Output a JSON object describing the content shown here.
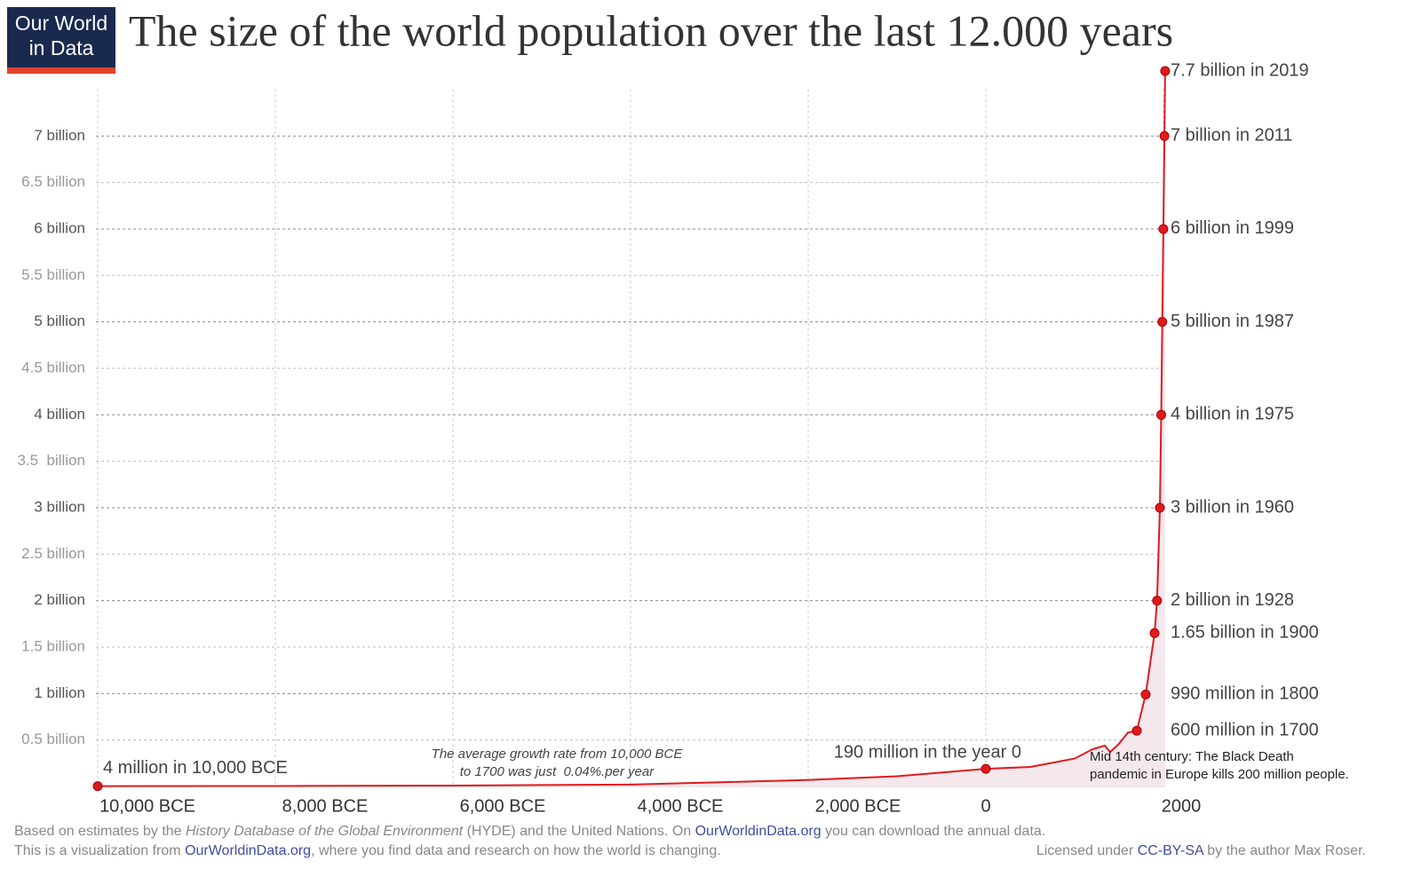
{
  "logo": {
    "line1": "Our World",
    "line2": "in Data"
  },
  "chart_data": {
    "type": "line",
    "title": "The size of the world population over the last 12.000 years",
    "x": [
      -10000,
      -8000,
      -6000,
      -4000,
      -2000,
      -1000,
      0,
      500,
      1000,
      1200,
      1340,
      1400,
      1500,
      1600,
      1700,
      1800,
      1900,
      1928,
      1960,
      1975,
      1987,
      1999,
      2011,
      2019
    ],
    "values": [
      0.004,
      0.005,
      0.01,
      0.02,
      0.07,
      0.11,
      0.19,
      0.21,
      0.3,
      0.4,
      0.44,
      0.37,
      0.46,
      0.58,
      0.6,
      0.99,
      1.65,
      2,
      3,
      4,
      5,
      6,
      7,
      7.7
    ],
    "color": "#e0191d",
    "area_color": "#f4e8ec",
    "xlim": [
      -10000,
      2020
    ],
    "ylim": [
      0,
      7.7
    ],
    "xticks": [
      {
        "value": -10000,
        "label": "10,000 BCE"
      },
      {
        "value": -8000,
        "label": "8,000 BCE"
      },
      {
        "value": -6000,
        "label": "6,000 BCE"
      },
      {
        "value": -4000,
        "label": "4,000 BCE"
      },
      {
        "value": -2000,
        "label": "2,000 BCE"
      },
      0,
      2000
    ],
    "yticks": [
      {
        "value": 0.5,
        "label": "0.5 billion"
      },
      {
        "value": 1,
        "label": "1 billion"
      },
      {
        "value": 1.5,
        "label": "1.5 billion"
      },
      {
        "value": 2,
        "label": "2 billion"
      },
      {
        "value": 2.5,
        "label": "2.5 billion"
      },
      {
        "value": 3,
        "label": "3 billion"
      },
      {
        "value": 3.5,
        "label": "3.5  billion"
      },
      {
        "value": 4,
        "label": "4 billion"
      },
      {
        "value": 4.5,
        "label": "4.5 billion"
      },
      {
        "value": 5,
        "label": "5 billion"
      },
      {
        "value": 5.5,
        "label": "5.5 billion"
      },
      {
        "value": 6,
        "label": "6 billion"
      },
      {
        "value": 6.5,
        "label": "6.5 billion"
      },
      {
        "value": 7,
        "label": "7 billion"
      }
    ],
    "grid": true,
    "annotations": [
      {
        "x": -10000,
        "y": 0.004,
        "label": "4 million in 10,000 BCE"
      },
      {
        "x": 0,
        "y": 0.19,
        "label": "190 million in the year 0"
      },
      {
        "x": 1700,
        "y": 0.6,
        "label": "600 million in 1700"
      },
      {
        "x": 1800,
        "y": 0.99,
        "label": "990 million in 1800"
      },
      {
        "x": 1900,
        "y": 1.65,
        "label": "1.65 billion in 1900"
      },
      {
        "x": 1928,
        "y": 2,
        "label": "2 billion in 1928"
      },
      {
        "x": 1960,
        "y": 3,
        "label": "3 billion in 1960"
      },
      {
        "x": 1975,
        "y": 4,
        "label": "4 billion in 1975"
      },
      {
        "x": 1987,
        "y": 5,
        "label": "5 billion in 1987"
      },
      {
        "x": 1999,
        "y": 6,
        "label": "6 billion in 1999"
      },
      {
        "x": 2011,
        "y": 7,
        "label": "7 billion in 2011"
      },
      {
        "x": 2019,
        "y": 7.7,
        "label": "7.7 billion in 2019"
      }
    ],
    "notes": [
      {
        "lines": [
          "The average growth rate from 10,000 BCE",
          "to 1700 was just  0.04%.per year"
        ]
      },
      {
        "lines": [
          "Mid 14th century: The Black Death",
          "pandemic in Europe kills 200 million people."
        ]
      }
    ]
  },
  "footer": {
    "lines": [
      [
        {
          "text": "Based on estimates by the ",
          "style": "plain"
        },
        {
          "text": "History Database of the Global Environment",
          "style": "italic"
        },
        {
          "text": " (HYDE) and the United Nations. On ",
          "style": "plain"
        },
        {
          "text": "OurWorldinData.org",
          "style": "link"
        },
        {
          "text": " you can download the annual data.",
          "style": "plain"
        }
      ],
      [
        {
          "text": "This is a visualization from ",
          "style": "plain"
        },
        {
          "text": "OurWorldinData.org",
          "style": "link"
        },
        {
          "text": ", where you find data and research on how the world is changing.",
          "style": "plain"
        }
      ]
    ],
    "license": [
      {
        "text": "Licensed under ",
        "style": "plain"
      },
      {
        "text": "CC-BY-SA",
        "style": "link"
      },
      {
        "text": " by the author Max Roser.",
        "style": "plain"
      }
    ]
  }
}
